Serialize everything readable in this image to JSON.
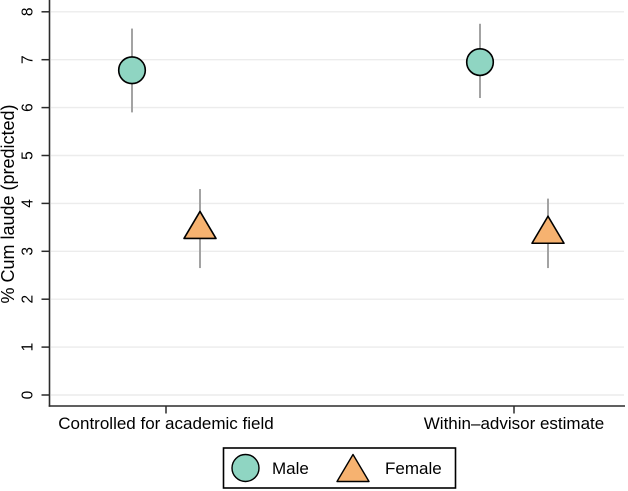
{
  "chart_data": {
    "type": "scatter",
    "title": "",
    "xlabel": "",
    "ylabel": "% Cum laude (predicted)",
    "ylim": [
      0,
      8
    ],
    "yticks": [
      0,
      1,
      2,
      3,
      4,
      5,
      6,
      7,
      8
    ],
    "grid": "horizontal",
    "categories": [
      "Controlled for academic field",
      "Within–advisor estimate"
    ],
    "series": [
      {
        "name": "Male",
        "marker": "circle",
        "color": "#8fd5c2",
        "values": [
          6.78,
          6.95
        ],
        "ci_low": [
          5.9,
          6.2
        ],
        "ci_high": [
          7.65,
          7.75
        ]
      },
      {
        "name": "Female",
        "marker": "triangle",
        "color": "#f6b270",
        "values": [
          3.55,
          3.45
        ],
        "ci_low": [
          2.65,
          2.65
        ],
        "ci_high": [
          4.3,
          4.1
        ]
      }
    ],
    "legend": {
      "position": "bottom",
      "entries": [
        "Male",
        "Female"
      ]
    },
    "colors": {
      "marker_outline": "#000000",
      "error_bar": "#a3a3a3",
      "gridline": "#ececec",
      "axis": "#2b2b2b",
      "background": "#ffffff"
    }
  }
}
